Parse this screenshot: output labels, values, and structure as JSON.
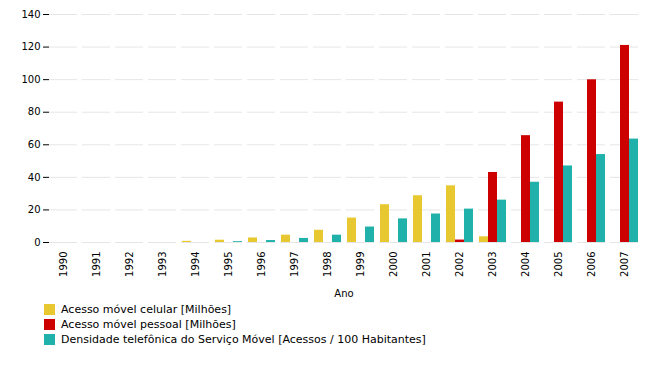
{
  "chart_data": {
    "type": "bar",
    "xlabel": "Ano",
    "categories": [
      "1990",
      "1991",
      "1992",
      "1993",
      "1994",
      "1995",
      "1996",
      "1997",
      "1998",
      "1999",
      "2000",
      "2001",
      "2002",
      "2003",
      "2004",
      "2005",
      "2006",
      "2007"
    ],
    "series": [
      {
        "name": "Acesso móvel celular [Milhões]",
        "color": "#E8C830",
        "values": [
          0,
          0,
          0,
          0,
          0.7,
          1.4,
          2.8,
          4.5,
          7.5,
          15.0,
          23.2,
          28.7,
          34.8,
          3.5,
          0,
          0,
          0,
          0
        ]
      },
      {
        "name": "Acesso móvel pessoal [Milhões]",
        "color": "#CC0000",
        "values": [
          0,
          0,
          0,
          0,
          0,
          0,
          0,
          0,
          0,
          0,
          0,
          0,
          1.5,
          43.0,
          65.6,
          86.2,
          99.9,
          121.0
        ]
      },
      {
        "name": "Densidade telefônica do Serviço Móvel [Acessos / 100 Habitantes]",
        "color": "#20B2AA",
        "values": [
          0,
          0,
          0,
          0,
          0,
          0.5,
          1.2,
          2.5,
          4.5,
          9.5,
          14.5,
          17.5,
          20.5,
          26.0,
          37.0,
          47.0,
          54.0,
          63.5
        ]
      }
    ],
    "ylim": [
      0,
      140
    ],
    "yticks": [
      0,
      20,
      40,
      60,
      80,
      100,
      120,
      140
    ],
    "grid": true,
    "legend": "bottom"
  }
}
